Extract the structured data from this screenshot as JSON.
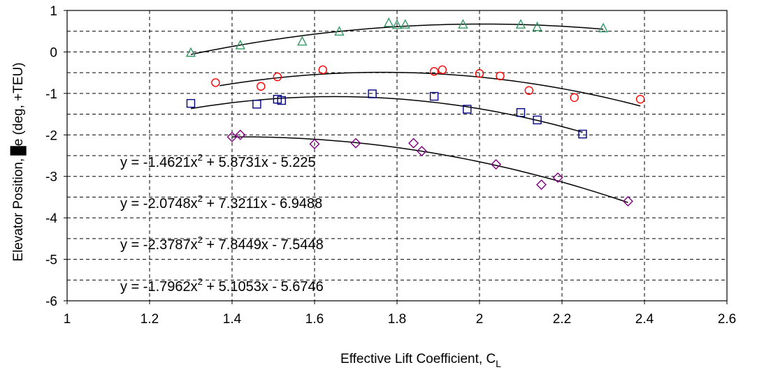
{
  "chart_data": {
    "type": "scatter",
    "xlabel_main": "Effective Lift Coefficient, C",
    "xlabel_sub": "L",
    "ylabel_prefix": "Elevator Position,",
    "ylabel_suffix": "e (deg, +TEU)",
    "xlim": [
      1,
      2.6
    ],
    "ylim": [
      -6,
      1
    ],
    "xticks": [
      1,
      1.2,
      1.4,
      1.6,
      1.8,
      2,
      2.2,
      2.4,
      2.6
    ],
    "xtick_labels": [
      "1",
      "1.2",
      "1.4",
      "1.6",
      "1.8",
      "2",
      "2.2",
      "2.4",
      "2.6"
    ],
    "yticks": [
      1,
      0,
      -1,
      -2,
      -3,
      -4,
      -5,
      -6
    ],
    "ytick_labels": [
      "1",
      "0",
      "-1",
      "-2",
      "-3",
      "-4",
      "-5",
      "-6"
    ],
    "grid": true,
    "series": [
      {
        "marker": "triangle",
        "color": "#339966",
        "points": [
          [
            1.3,
            -0.02
          ],
          [
            1.42,
            0.16
          ],
          [
            1.57,
            0.25
          ],
          [
            1.66,
            0.49
          ],
          [
            1.78,
            0.7
          ],
          [
            1.8,
            0.65
          ],
          [
            1.82,
            0.66
          ],
          [
            1.96,
            0.66
          ],
          [
            2.1,
            0.66
          ],
          [
            2.14,
            0.6
          ],
          [
            2.3,
            0.57
          ]
        ],
        "fit": {
          "a": -1.4621,
          "b": 5.8731,
          "c": -5.225,
          "xrange": [
            1.3,
            2.3
          ]
        }
      },
      {
        "marker": "circle",
        "color": "#ff0000",
        "points": [
          [
            1.36,
            -0.74
          ],
          [
            1.47,
            -0.83
          ],
          [
            1.51,
            -0.6
          ],
          [
            1.62,
            -0.43
          ],
          [
            1.89,
            -0.47
          ],
          [
            1.91,
            -0.43
          ],
          [
            2.0,
            -0.52
          ],
          [
            2.05,
            -0.58
          ],
          [
            2.12,
            -0.93
          ],
          [
            2.23,
            -1.1
          ],
          [
            2.39,
            -1.14
          ]
        ],
        "fit": {
          "a": -2.0748,
          "b": 7.3211,
          "c": -6.9488,
          "xrange": [
            1.37,
            2.39
          ]
        }
      },
      {
        "marker": "square",
        "color": "#000080",
        "points": [
          [
            1.3,
            -1.24
          ],
          [
            1.46,
            -1.26
          ],
          [
            1.51,
            -1.14
          ],
          [
            1.52,
            -1.17
          ],
          [
            1.74,
            -1.01
          ],
          [
            1.89,
            -1.07
          ],
          [
            1.97,
            -1.38
          ],
          [
            2.1,
            -1.46
          ],
          [
            2.14,
            -1.64
          ],
          [
            2.25,
            -1.98
          ]
        ],
        "fit": {
          "a": -2.3787,
          "b": 7.8449,
          "c": -7.5448,
          "xrange": [
            1.3,
            2.25
          ]
        }
      },
      {
        "marker": "diamond",
        "color": "#800080",
        "points": [
          [
            1.4,
            -2.05
          ],
          [
            1.42,
            -2.0
          ],
          [
            1.6,
            -2.22
          ],
          [
            1.7,
            -2.2
          ],
          [
            1.84,
            -2.2
          ],
          [
            1.86,
            -2.39
          ],
          [
            2.04,
            -2.71
          ],
          [
            2.15,
            -3.2
          ],
          [
            2.19,
            -3.03
          ],
          [
            2.36,
            -3.6
          ]
        ],
        "fit": {
          "a": -1.7962,
          "b": 5.1053,
          "c": -5.6746,
          "xrange": [
            1.4,
            2.36
          ]
        }
      }
    ],
    "equations": [
      {
        "pre": "y = -1.4621x",
        "sup": "2",
        "post": " + 5.8731x - 5.225"
      },
      {
        "pre": "y = -2.0748x",
        "sup": "2",
        "post": " + 7.3211x - 6.9488"
      },
      {
        "pre": "y = -2.3787x",
        "sup": "2",
        "post": " + 7.8449x - 7.5448"
      },
      {
        "pre": "y = -1.7962x",
        "sup": "2",
        "post": " + 5.1053x - 5.6746"
      }
    ]
  }
}
